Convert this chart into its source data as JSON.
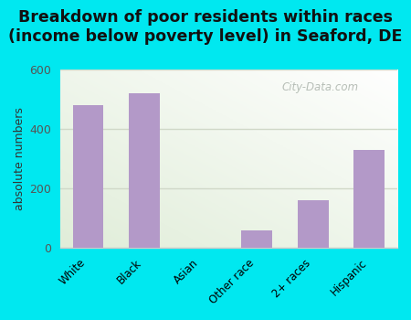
{
  "title_line1": "Breakdown of poor residents within races",
  "title_line2": "(income below poverty level) in Seaford, DE",
  "categories": [
    "White",
    "Black",
    "Asian",
    "Other race",
    "2+ races",
    "Hispanic"
  ],
  "values": [
    480,
    520,
    0,
    58,
    162,
    330
  ],
  "bar_color": "#b399c8",
  "ylabel": "absolute numbers",
  "ylim": [
    0,
    600
  ],
  "yticks": [
    0,
    200,
    400,
    600
  ],
  "background_outer": "#00e8f0",
  "title_fontsize": 12.5,
  "title_fontweight": "bold",
  "watermark": "City-Data.com",
  "watermark_color": "#b0b8b0",
  "grid_color": "#d0d8c8",
  "bg_left_bottom": "#d8edcc",
  "bg_right_top": "#f8f8f4"
}
